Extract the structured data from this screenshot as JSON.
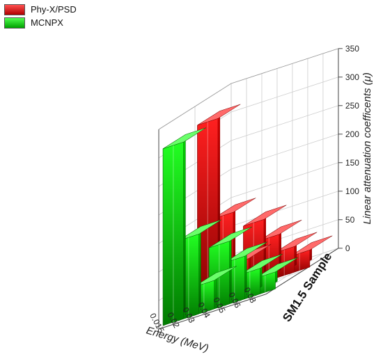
{
  "chart_data": {
    "type": "bar",
    "subtype": "3d-bar",
    "categories": [
      "0.015",
      "0.02",
      "0.03",
      "0.04",
      "0.05",
      "0.06",
      "0.08"
    ],
    "series": [
      {
        "name": "Phy-X/PSD",
        "values": [
          313,
          140,
          50,
          110,
          75,
          45,
          30
        ]
      },
      {
        "name": "MCNPX",
        "values": [
          310,
          140,
          50,
          110,
          75,
          45,
          30
        ]
      }
    ],
    "xlabel": "Energy (MeV)",
    "ylabel": "SM1.5 Sample",
    "zlabel": "Linear attenuation coefficents (μ)",
    "zticks": [
      "0",
      "50",
      "100",
      "150",
      "200",
      "250",
      "300",
      "350"
    ],
    "zlim": [
      0,
      350
    ],
    "grid": true,
    "legend_position": "top-left",
    "colors": {
      "Phy-X/PSD": "#ff1a1a",
      "MCNPX": "#1aff1a"
    }
  }
}
